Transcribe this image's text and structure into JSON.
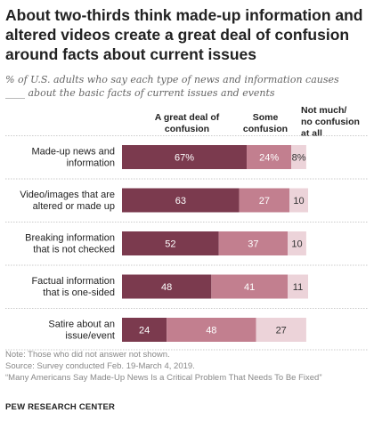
{
  "title": "About two-thirds think made-up information and altered videos create a great deal of confusion around facts about current issues",
  "subtitle": "% of U.S. adults who say each type of news and information causes ____ about the basic facts of current issues and events",
  "colors": {
    "great": "#7b3a4e",
    "some": "#c27f8f",
    "notmuch": "#ecd3d9",
    "divider": "#bbbbbb"
  },
  "chart_data": {
    "type": "bar",
    "orientation": "horizontal",
    "stacked": true,
    "categories": [
      "Made-up news and information",
      "Video/images that are altered or made up",
      "Breaking information that is not checked",
      "Factual information that is one-sided",
      "Satire about an issue/event"
    ],
    "category_lines": [
      [
        "Made-up news and",
        "information"
      ],
      [
        "Video/images that are",
        "altered or made up"
      ],
      [
        "Breaking information",
        "that is not checked"
      ],
      [
        "Factual information",
        "that is one-sided"
      ],
      [
        "Satire about an",
        "issue/event"
      ]
    ],
    "series": [
      {
        "name": "A great deal of confusion",
        "name_lines": [
          "A great deal of",
          "confusion"
        ],
        "values": [
          67,
          63,
          52,
          48,
          24
        ],
        "labels": [
          "67%",
          "63",
          "52",
          "48",
          "24"
        ]
      },
      {
        "name": "Some confusion",
        "name_lines": [
          "Some",
          "confusion"
        ],
        "values": [
          24,
          27,
          37,
          41,
          48
        ],
        "labels": [
          "24%",
          "27",
          "37",
          "41",
          "48"
        ]
      },
      {
        "name": "Not much/ no confusion at all",
        "name_lines": [
          "Not much/",
          "no confusion",
          "at all"
        ],
        "values": [
          8,
          10,
          10,
          11,
          27
        ],
        "labels": [
          "8%",
          "10",
          "10",
          "11",
          "27"
        ]
      }
    ],
    "xlim": [
      0,
      100
    ]
  },
  "notes": [
    "Note: Those who did not answer not shown.",
    "Source: Survey conducted Feb. 19-March 4, 2019.",
    "“Many Americans Say Made-Up News Is a Critical Problem That Needs To Be Fixed”"
  ],
  "brand": "PEW RESEARCH CENTER"
}
